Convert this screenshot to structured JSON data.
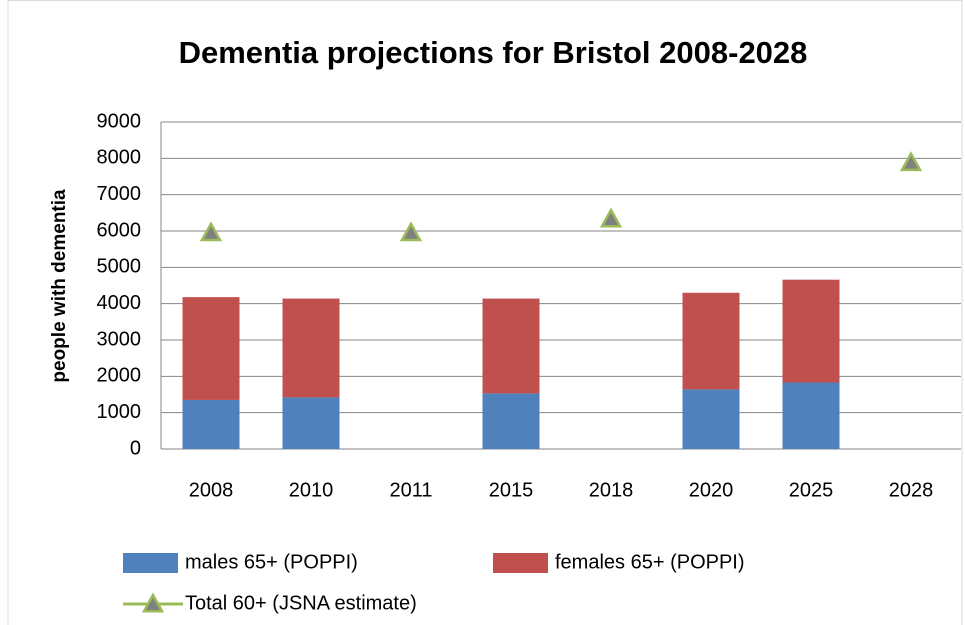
{
  "chart_data": {
    "type": "stacked-bar-marker",
    "title": "Dementia projections for Bristol 2008-2028",
    "y_label": "people with dementia",
    "categories": [
      "2008",
      "2010",
      "2011",
      "2015",
      "2018",
      "2020",
      "2025",
      "2028"
    ],
    "series": [
      {
        "name": "males 65+ (POPPI)",
        "color": "#4f81bd",
        "kind": "bar",
        "values": [
          1350,
          1420,
          null,
          1530,
          null,
          1640,
          1830,
          null
        ]
      },
      {
        "name": "females 65+ (POPPI)",
        "color": "#c0504d",
        "kind": "bar",
        "values": [
          2830,
          2720,
          null,
          2610,
          null,
          2660,
          2830,
          null
        ]
      },
      {
        "name": "Total 60+ (JSNA estimate)",
        "color": "#9bbb59",
        "marker_fill": "#808080",
        "kind": "marker",
        "values": [
          5950,
          null,
          5950,
          null,
          6330,
          null,
          null,
          7880
        ]
      }
    ],
    "ylim": [
      0,
      9000
    ],
    "yticks": [
      0,
      1000,
      2000,
      3000,
      4000,
      5000,
      6000,
      7000,
      8000,
      9000
    ],
    "grid": true
  }
}
